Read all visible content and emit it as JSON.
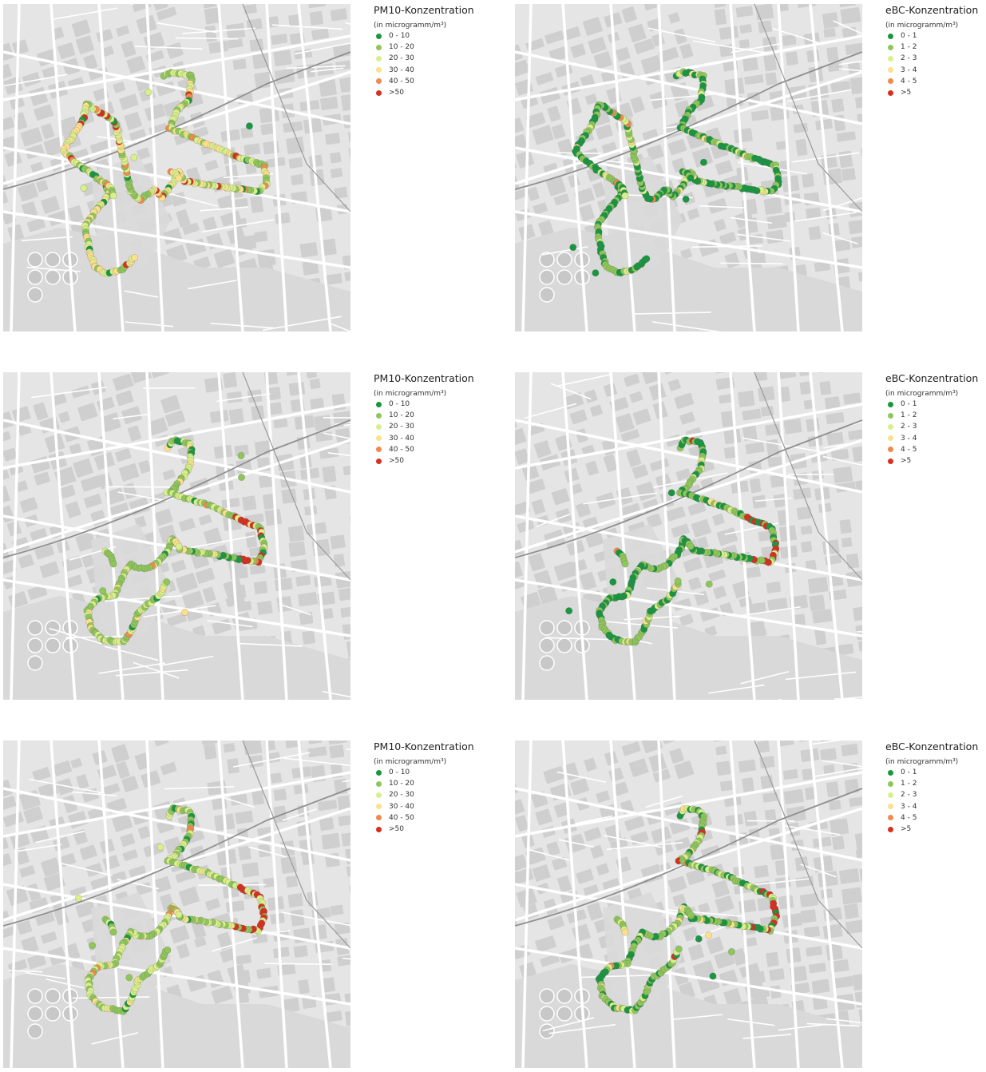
{
  "palette": {
    "c0": "#1a9641",
    "c1": "#8fc65a",
    "c2": "#d9ef8b",
    "c3": "#fee08b",
    "c4": "#f08a4b",
    "c5": "#d7301f"
  },
  "map_style": {
    "land": "#e5e5e5",
    "block": "#cfcfcf",
    "street": "#ffffff",
    "park": "#d9d9d9",
    "rail": "#8f8f8f"
  },
  "panels": [
    {
      "legend": {
        "title": "PM10-Konzentration",
        "unit": "(in microgramm/m³)",
        "items": [
          "0 - 10",
          "10 - 20",
          "20 - 30",
          "30 - 40",
          "40 - 50",
          ">50"
        ]
      },
      "route_class_mix": [
        1,
        4,
        8,
        4,
        1,
        1
      ],
      "hotspot_class": 5
    },
    {
      "legend": {
        "title": "eBC-Konzentration",
        "unit": "(in microgramm/m³)",
        "items": [
          "0 - 1",
          "1 - 2",
          "2 - 3",
          "3 - 4",
          "4 - 5",
          ">5"
        ]
      },
      "route_class_mix": [
        10,
        6,
        1,
        0.3,
        0.1,
        0
      ],
      "hotspot_class": 4
    },
    {
      "legend": {
        "title": "PM10-Konzentration",
        "unit": "(in microgramm/m³)",
        "items": [
          "0 - 10",
          "10 - 20",
          "20 - 30",
          "30 - 40",
          "40 - 50",
          ">50"
        ]
      },
      "route_class_mix": [
        1,
        9,
        6,
        1,
        0.2,
        0
      ],
      "hotspot_class": 5
    },
    {
      "legend": {
        "title": "eBC-Konzentration",
        "unit": "(in microgramm/m³)",
        "items": [
          "0 - 1",
          "1 - 2",
          "2 - 3",
          "3 - 4",
          "4 - 5",
          ">5"
        ]
      },
      "route_class_mix": [
        7,
        9,
        2,
        0.3,
        0.2,
        0.2
      ],
      "hotspot_class": 5
    },
    {
      "legend": {
        "title": "PM10-Konzentration",
        "unit": "(in microgramm/m³)",
        "items": [
          "0 - 10",
          "10 - 20",
          "20 - 30",
          "30 - 40",
          "40 - 50",
          ">50"
        ]
      },
      "route_class_mix": [
        1,
        8,
        8,
        1.5,
        0.5,
        0.2
      ],
      "hotspot_class": 5
    },
    {
      "legend": {
        "title": "eBC-Konzentration",
        "unit": "(in microgramm/m³)",
        "items": [
          "0 - 1",
          "1 - 2",
          "2 - 3",
          "3 - 4",
          "4 - 5",
          ">5"
        ]
      },
      "route_class_mix": [
        6,
        10,
        3,
        0.5,
        0.3,
        0.3
      ],
      "hotspot_class": 5
    }
  ]
}
